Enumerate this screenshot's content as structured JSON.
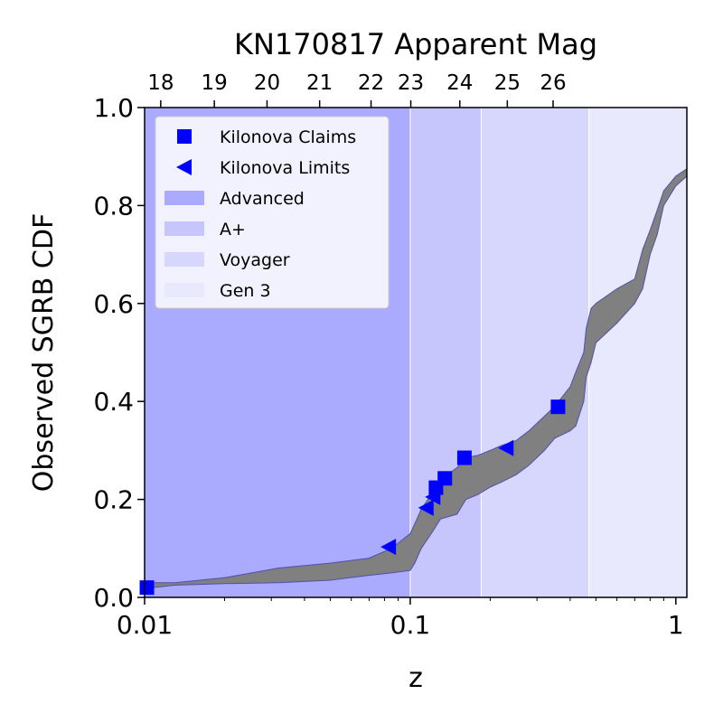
{
  "chart_data": {
    "type": "area",
    "title": "KN170817 Apparent Mag",
    "xlabel": "z",
    "ylabel": "Observed SGRB CDF",
    "xscale": "log",
    "xlim": [
      0.01,
      1.1
    ],
    "ylim": [
      0.0,
      1.0
    ],
    "x_ticks": [
      {
        "value": 0.01,
        "label": "0.01"
      },
      {
        "value": 0.1,
        "label": "0.1"
      },
      {
        "value": 1,
        "label": "1"
      }
    ],
    "y_ticks": [
      {
        "value": 0.0,
        "label": "0.0"
      },
      {
        "value": 0.2,
        "label": "0.2"
      },
      {
        "value": 0.4,
        "label": "0.4"
      },
      {
        "value": 0.6,
        "label": "0.6"
      },
      {
        "value": 0.8,
        "label": "0.8"
      },
      {
        "value": 1.0,
        "label": "1.0"
      }
    ],
    "top_axis": {
      "ticks": [
        {
          "z": 0.0115,
          "label": "18"
        },
        {
          "z": 0.0183,
          "label": "19"
        },
        {
          "z": 0.0289,
          "label": "20"
        },
        {
          "z": 0.0456,
          "label": "21"
        },
        {
          "z": 0.0712,
          "label": "22"
        },
        {
          "z": 0.1005,
          "label": "23"
        },
        {
          "z": 0.1537,
          "label": "24"
        },
        {
          "z": 0.232,
          "label": "25"
        },
        {
          "z": 0.345,
          "label": "26"
        }
      ]
    },
    "regions": [
      {
        "name": "Advanced",
        "z_range": [
          0.01,
          0.1
        ],
        "color": "#aaaaff"
      },
      {
        "name": "A+",
        "z_range": [
          0.1,
          0.185
        ],
        "color": "#c6c6fc"
      },
      {
        "name": "Voyager",
        "z_range": [
          0.185,
          0.47
        ],
        "color": "#d7d7fd"
      },
      {
        "name": "Gen 3",
        "z_range": [
          0.47,
          1.1
        ],
        "color": "#e9e9fe"
      }
    ],
    "band": {
      "color": "#808080",
      "edge_color": "#5050aa",
      "x": [
        0.01,
        0.013,
        0.02,
        0.032,
        0.05,
        0.07,
        0.085,
        0.1,
        0.104,
        0.11,
        0.12,
        0.13,
        0.15,
        0.162,
        0.18,
        0.2,
        0.22,
        0.25,
        0.28,
        0.32,
        0.35,
        0.4,
        0.42,
        0.45,
        0.46,
        0.48,
        0.5,
        0.6,
        0.7,
        0.75,
        0.8,
        0.85,
        0.9,
        1.0,
        1.1
      ],
      "upper": [
        0.03,
        0.03,
        0.04,
        0.06,
        0.07,
        0.08,
        0.1,
        0.13,
        0.15,
        0.18,
        0.21,
        0.24,
        0.265,
        0.285,
        0.29,
        0.3,
        0.31,
        0.32,
        0.34,
        0.37,
        0.39,
        0.43,
        0.46,
        0.5,
        0.55,
        0.59,
        0.6,
        0.63,
        0.65,
        0.71,
        0.75,
        0.79,
        0.83,
        0.86,
        0.875
      ],
      "lower": [
        0.018,
        0.025,
        0.028,
        0.03,
        0.035,
        0.045,
        0.05,
        0.055,
        0.07,
        0.1,
        0.13,
        0.16,
        0.17,
        0.2,
        0.21,
        0.225,
        0.235,
        0.25,
        0.27,
        0.3,
        0.325,
        0.34,
        0.35,
        0.4,
        0.45,
        0.48,
        0.52,
        0.56,
        0.6,
        0.63,
        0.7,
        0.74,
        0.8,
        0.84,
        0.86
      ]
    },
    "series": [
      {
        "name": "Kilonova Claims",
        "marker": "square",
        "color": "#0000ff",
        "points": [
          {
            "x": 0.0102,
            "y": 0.02
          },
          {
            "x": 0.125,
            "y": 0.224
          },
          {
            "x": 0.135,
            "y": 0.243
          },
          {
            "x": 0.16,
            "y": 0.285
          },
          {
            "x": 0.36,
            "y": 0.389
          }
        ]
      },
      {
        "name": "Kilonova Limits",
        "marker": "triangle-left",
        "color": "#0000ff",
        "points": [
          {
            "x": 0.083,
            "y": 0.103
          },
          {
            "x": 0.115,
            "y": 0.183
          },
          {
            "x": 0.122,
            "y": 0.205
          },
          {
            "x": 0.23,
            "y": 0.305
          }
        ]
      }
    ],
    "legend": {
      "position": "top-left",
      "entries": [
        {
          "label": "Kilonova Claims",
          "kind": "square",
          "color": "#0000ff"
        },
        {
          "label": "Kilonova Limits",
          "kind": "triangle-left",
          "color": "#0000ff"
        },
        {
          "label": "Advanced",
          "kind": "patch",
          "color": "#aaaaff"
        },
        {
          "label": "A+",
          "kind": "patch",
          "color": "#c6c6fc"
        },
        {
          "label": "Voyager",
          "kind": "patch",
          "color": "#d7d7fd"
        },
        {
          "label": "Gen 3",
          "kind": "patch",
          "color": "#e9e9fe"
        }
      ]
    },
    "grid": false
  }
}
